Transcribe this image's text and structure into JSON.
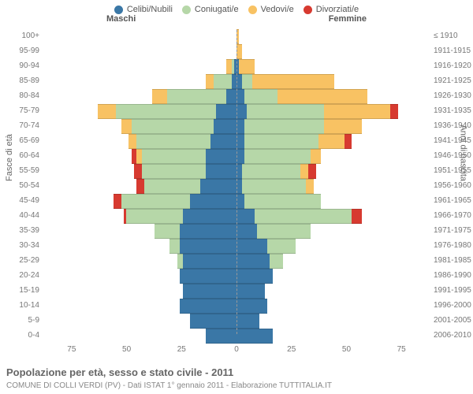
{
  "legend": [
    {
      "label": "Celibi/Nubili",
      "color": "#3a77a6"
    },
    {
      "label": "Coniugati/e",
      "color": "#b6d7a8"
    },
    {
      "label": "Vedovi/e",
      "color": "#f8c263"
    },
    {
      "label": "Divorziati/e",
      "color": "#d73a30"
    }
  ],
  "header": {
    "maschi": "Maschi",
    "femmine": "Femmine"
  },
  "axis": {
    "left_title": "Fasce di età",
    "right_title": "Anni di nascita",
    "x_ticks": [
      "75",
      "50",
      "25",
      "0",
      "25",
      "50",
      "75"
    ],
    "x_max": 75
  },
  "rows": [
    {
      "age": "100+",
      "birth": "≤ 1910",
      "m": {
        "single": 0,
        "married": 0,
        "widowed": 0,
        "divorced": 0
      },
      "f": {
        "single": 0,
        "married": 0,
        "widowed": 1,
        "divorced": 0
      }
    },
    {
      "age": "95-99",
      "birth": "1911-1915",
      "m": {
        "single": 0,
        "married": 0,
        "widowed": 0,
        "divorced": 0
      },
      "f": {
        "single": 0,
        "married": 0,
        "widowed": 2,
        "divorced": 0
      }
    },
    {
      "age": "90-94",
      "birth": "1916-1920",
      "m": {
        "single": 1,
        "married": 1,
        "widowed": 2,
        "divorced": 0
      },
      "f": {
        "single": 1,
        "married": 0,
        "widowed": 6,
        "divorced": 0
      }
    },
    {
      "age": "85-89",
      "birth": "1921-1925",
      "m": {
        "single": 2,
        "married": 7,
        "widowed": 3,
        "divorced": 0
      },
      "f": {
        "single": 2,
        "married": 4,
        "widowed": 32,
        "divorced": 0
      }
    },
    {
      "age": "80-84",
      "birth": "1926-1930",
      "m": {
        "single": 4,
        "married": 23,
        "widowed": 6,
        "divorced": 0
      },
      "f": {
        "single": 3,
        "married": 13,
        "widowed": 35,
        "divorced": 0
      }
    },
    {
      "age": "75-79",
      "birth": "1931-1935",
      "m": {
        "single": 8,
        "married": 39,
        "widowed": 7,
        "divorced": 0
      },
      "f": {
        "single": 4,
        "married": 30,
        "widowed": 26,
        "divorced": 3
      }
    },
    {
      "age": "70-74",
      "birth": "1936-1940",
      "m": {
        "single": 9,
        "married": 32,
        "widowed": 4,
        "divorced": 0
      },
      "f": {
        "single": 3,
        "married": 31,
        "widowed": 15,
        "divorced": 0
      }
    },
    {
      "age": "65-69",
      "birth": "1941-1945",
      "m": {
        "single": 10,
        "married": 29,
        "widowed": 3,
        "divorced": 0
      },
      "f": {
        "single": 3,
        "married": 29,
        "widowed": 10,
        "divorced": 3
      }
    },
    {
      "age": "60-64",
      "birth": "1946-1950",
      "m": {
        "single": 12,
        "married": 25,
        "widowed": 2,
        "divorced": 2
      },
      "f": {
        "single": 3,
        "married": 26,
        "widowed": 4,
        "divorced": 0
      }
    },
    {
      "age": "55-59",
      "birth": "1951-1955",
      "m": {
        "single": 12,
        "married": 25,
        "widowed": 0,
        "divorced": 3
      },
      "f": {
        "single": 2,
        "married": 23,
        "widowed": 3,
        "divorced": 3
      }
    },
    {
      "age": "50-54",
      "birth": "1956-1960",
      "m": {
        "single": 14,
        "married": 22,
        "widowed": 0,
        "divorced": 3
      },
      "f": {
        "single": 2,
        "married": 25,
        "widowed": 3,
        "divorced": 0
      }
    },
    {
      "age": "45-49",
      "birth": "1961-1965",
      "m": {
        "single": 18,
        "married": 27,
        "widowed": 0,
        "divorced": 3
      },
      "f": {
        "single": 3,
        "married": 30,
        "widowed": 0,
        "divorced": 0
      }
    },
    {
      "age": "40-44",
      "birth": "1966-1970",
      "m": {
        "single": 21,
        "married": 22,
        "widowed": 0,
        "divorced": 1
      },
      "f": {
        "single": 7,
        "married": 38,
        "widowed": 0,
        "divorced": 4
      }
    },
    {
      "age": "35-39",
      "birth": "1971-1975",
      "m": {
        "single": 22,
        "married": 10,
        "widowed": 0,
        "divorced": 0
      },
      "f": {
        "single": 8,
        "married": 21,
        "widowed": 0,
        "divorced": 0
      }
    },
    {
      "age": "30-34",
      "birth": "1976-1980",
      "m": {
        "single": 22,
        "married": 4,
        "widowed": 0,
        "divorced": 0
      },
      "f": {
        "single": 12,
        "married": 11,
        "widowed": 0,
        "divorced": 0
      }
    },
    {
      "age": "25-29",
      "birth": "1981-1985",
      "m": {
        "single": 21,
        "married": 2,
        "widowed": 0,
        "divorced": 0
      },
      "f": {
        "single": 13,
        "married": 5,
        "widowed": 0,
        "divorced": 0
      }
    },
    {
      "age": "20-24",
      "birth": "1986-1990",
      "m": {
        "single": 22,
        "married": 0,
        "widowed": 0,
        "divorced": 0
      },
      "f": {
        "single": 14,
        "married": 0,
        "widowed": 0,
        "divorced": 0
      }
    },
    {
      "age": "15-19",
      "birth": "1991-1995",
      "m": {
        "single": 21,
        "married": 0,
        "widowed": 0,
        "divorced": 0
      },
      "f": {
        "single": 11,
        "married": 0,
        "widowed": 0,
        "divorced": 0
      }
    },
    {
      "age": "10-14",
      "birth": "1996-2000",
      "m": {
        "single": 22,
        "married": 0,
        "widowed": 0,
        "divorced": 0
      },
      "f": {
        "single": 12,
        "married": 0,
        "widowed": 0,
        "divorced": 0
      }
    },
    {
      "age": "5-9",
      "birth": "2001-2005",
      "m": {
        "single": 18,
        "married": 0,
        "widowed": 0,
        "divorced": 0
      },
      "f": {
        "single": 9,
        "married": 0,
        "widowed": 0,
        "divorced": 0
      }
    },
    {
      "age": "0-4",
      "birth": "2006-2010",
      "m": {
        "single": 12,
        "married": 0,
        "widowed": 0,
        "divorced": 0
      },
      "f": {
        "single": 14,
        "married": 0,
        "widowed": 0,
        "divorced": 0
      }
    }
  ],
  "caption": "Popolazione per età, sesso e stato civile - 2011",
  "subcaption": "COMUNE DI COLLI VERDI (PV) - Dati ISTAT 1° gennaio 2011 - Elaborazione TUTTITALIA.IT"
}
